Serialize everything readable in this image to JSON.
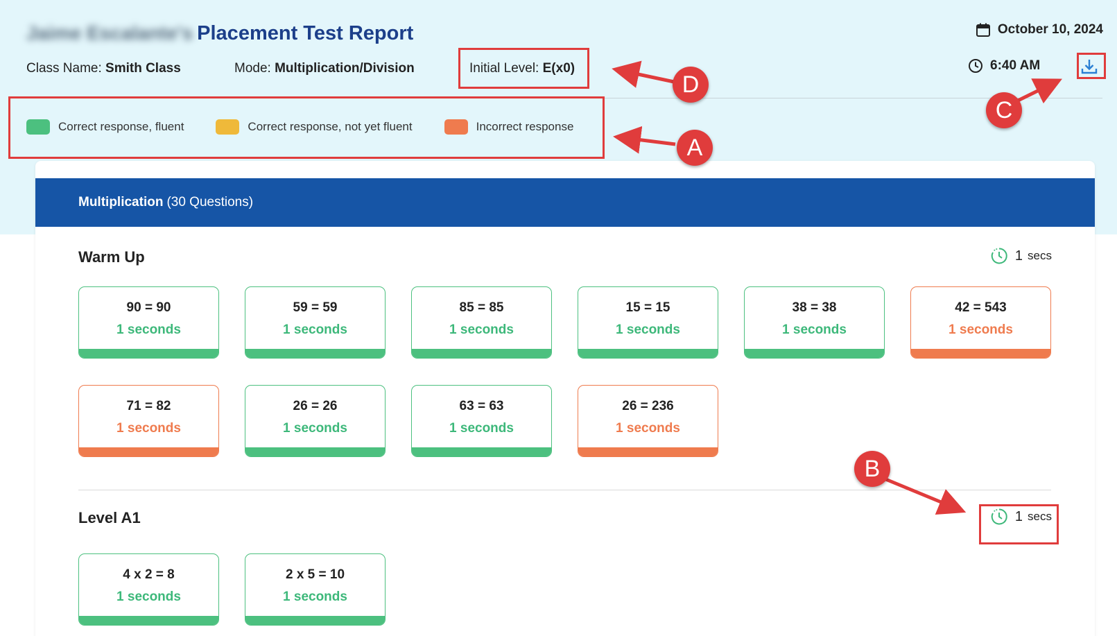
{
  "header": {
    "student_name": "Jaime Escalante's",
    "title": "Placement Test Report",
    "class_label": "Class Name:",
    "class_value": "Smith Class",
    "mode_label": "Mode:",
    "mode_value": "Multiplication/Division",
    "initial_level_label": "Initial Level:",
    "initial_level_value": "E(x0)",
    "date": "October 10, 2024",
    "time": "6:40 AM",
    "download_icon": "download-icon",
    "calendar_icon": "calendar-icon",
    "clock_icon": "clock-icon"
  },
  "legend": [
    {
      "label": "Correct response, fluent",
      "color": "#4cc07f"
    },
    {
      "label": "Correct response, not yet fluent",
      "color": "#efb93a"
    },
    {
      "label": "Incorrect response",
      "color": "#ef7b4e"
    }
  ],
  "section_card": {
    "header_bold": "Multiplication",
    "header_rest": "(30 Questions)",
    "header_color": "#1655a6"
  },
  "groups": [
    {
      "title": "Warm Up",
      "secs_value": "1",
      "secs_unit": "secs",
      "items": [
        {
          "equation": "90 = 90",
          "time": "1 seconds",
          "status": "correct"
        },
        {
          "equation": "59 = 59",
          "time": "1 seconds",
          "status": "correct"
        },
        {
          "equation": "85 = 85",
          "time": "1 seconds",
          "status": "correct"
        },
        {
          "equation": "15 = 15",
          "time": "1 seconds",
          "status": "correct"
        },
        {
          "equation": "38 = 38",
          "time": "1 seconds",
          "status": "correct"
        },
        {
          "equation": "42 = 543",
          "time": "1 seconds",
          "status": "incorrect"
        },
        {
          "equation": "71 = 82",
          "time": "1 seconds",
          "status": "incorrect"
        },
        {
          "equation": "26 = 26",
          "time": "1 seconds",
          "status": "correct"
        },
        {
          "equation": "63 = 63",
          "time": "1 seconds",
          "status": "correct"
        },
        {
          "equation": "26 = 236",
          "time": "1 seconds",
          "status": "incorrect"
        }
      ]
    },
    {
      "title": "Level A1",
      "secs_value": "1",
      "secs_unit": "secs",
      "items": [
        {
          "equation": "4 x 2 = 8",
          "time": "1 seconds",
          "status": "correct"
        },
        {
          "equation": "2 x 5 = 10",
          "time": "1 seconds",
          "status": "correct"
        }
      ]
    }
  ],
  "annotations": {
    "a": "A",
    "b": "B",
    "c": "C",
    "d": "D",
    "color": "#e03c3c"
  }
}
